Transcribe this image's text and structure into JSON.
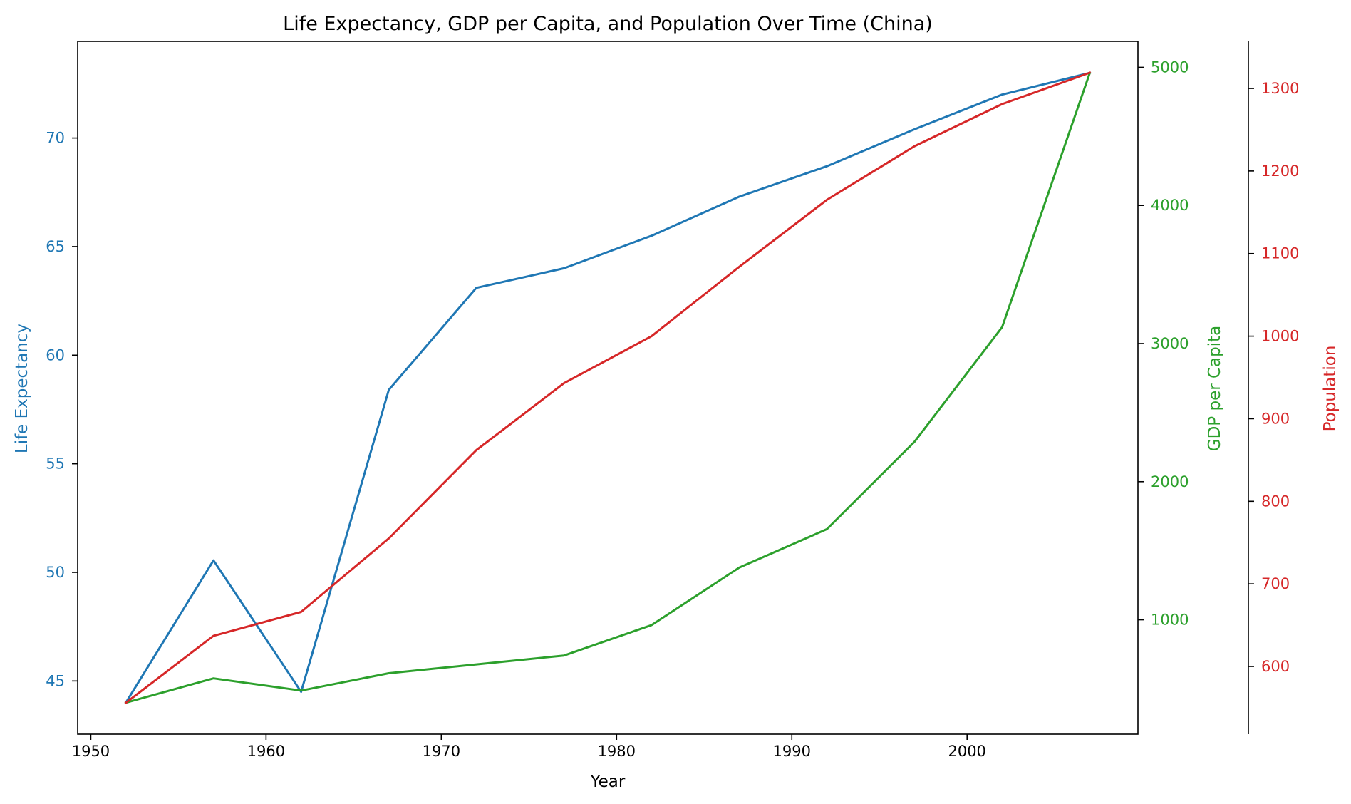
{
  "chart_data": {
    "type": "line",
    "title": "Life Expectancy, GDP per Capita, and Population Over Time (China)",
    "xlabel": "Year",
    "x": [
      1952,
      1957,
      1962,
      1967,
      1972,
      1977,
      1982,
      1987,
      1992,
      1997,
      2002,
      2007
    ],
    "xlim": [
      1949.25,
      2009.75
    ],
    "xticks": [
      1950,
      1960,
      1970,
      1980,
      1990,
      2000
    ],
    "series": [
      {
        "name": "Life Expectancy",
        "axis_label": "Life Expectancy",
        "color": "#1f77b4",
        "values": [
          44.0,
          50.55,
          44.5,
          58.4,
          63.1,
          64.0,
          65.5,
          67.3,
          68.7,
          70.4,
          72.0,
          73.0
        ],
        "ylim": [
          42.55,
          74.45
        ],
        "yticks": [
          45,
          50,
          55,
          60,
          65,
          70
        ]
      },
      {
        "name": "GDP per Capita",
        "axis_label": "GDP per Capita",
        "color": "#2ca02c",
        "values": [
          400,
          576,
          488,
          613,
          677,
          741,
          962,
          1378,
          1656,
          2289,
          3119,
          4959
        ],
        "ylim": [
          172,
          5188
        ],
        "yticks": [
          1000,
          2000,
          3000,
          4000,
          5000
        ]
      },
      {
        "name": "Population",
        "axis_label": "Population",
        "color": "#d62728",
        "values": [
          556,
          637,
          666,
          755,
          862,
          943,
          1000,
          1084,
          1165,
          1230,
          1281,
          1319
        ],
        "ylim": [
          518,
          1357
        ],
        "yticks": [
          600,
          700,
          800,
          900,
          1000,
          1100,
          1200,
          1300
        ]
      }
    ],
    "grid": false
  }
}
